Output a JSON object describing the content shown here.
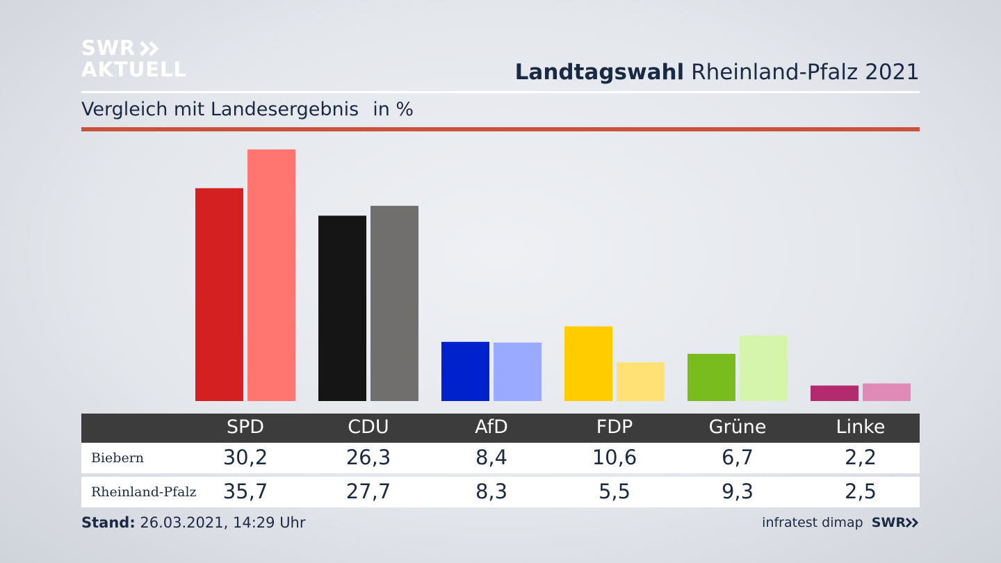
{
  "logo": {
    "line1": "SWR",
    "line2": "AKTUELL"
  },
  "header": {
    "title_bold": "Landtagswahl",
    "title_rest": "Rheinland-Pfalz 2021"
  },
  "subtitle": {
    "text": "Vergleich mit Landesergebnis",
    "unit": "in %"
  },
  "table": {
    "row_labels": [
      "Biebern",
      "Rheinland-Pfalz"
    ]
  },
  "footer": {
    "stand_label": "Stand:",
    "stand_value": "26.03.2021, 14:29 Uhr",
    "source": "infratest dimap",
    "brand": "SWR"
  },
  "colors": {
    "Biebern": [
      "#d42020",
      "#151515",
      "#0022cc",
      "#ffcc00",
      "#78bc1e",
      "#b42a6e"
    ],
    "Rheinland-Pfalz": [
      "#ff7570",
      "#706f6d",
      "#9aaaff",
      "#ffe175",
      "#d5f5ac",
      "#e08ab8"
    ],
    "accent_rule": "#c8533d"
  },
  "chart_data": {
    "type": "bar",
    "categories": [
      "SPD",
      "CDU",
      "AfD",
      "FDP",
      "Grüne",
      "Linke"
    ],
    "series": [
      {
        "name": "Biebern",
        "values": [
          30.2,
          26.3,
          8.4,
          10.6,
          6.7,
          2.2
        ]
      },
      {
        "name": "Rheinland-Pfalz",
        "values": [
          35.7,
          27.7,
          8.3,
          5.5,
          9.3,
          2.5
        ]
      }
    ],
    "value_labels": [
      [
        "30,2",
        "26,3",
        "8,4",
        "10,6",
        "6,7",
        "2,2"
      ],
      [
        "35,7",
        "27,7",
        "8,3",
        "5,5",
        "9,3",
        "2,5"
      ]
    ],
    "ylim": [
      0,
      35.7
    ]
  }
}
